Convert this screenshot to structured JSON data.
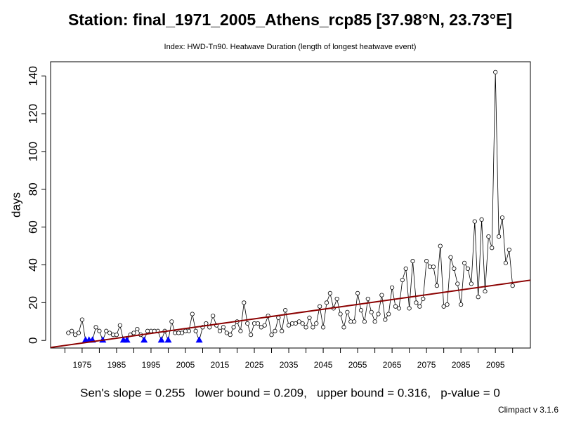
{
  "chart_data": {
    "type": "line",
    "title": "Station: final_1971_2005_Athens_rcp85 [37.98°N, 23.73°E]",
    "subtitle": "Index: HWD-Tn90. Heatwave Duration (length of longest heatwave event)",
    "y_label": "days",
    "annotation": "Sen's slope = 0.255   lower bound = 0.209,   upper bound = 0.316,   p-value = 0",
    "credit": "Climpact v 3.1.6",
    "x": [
      1971,
      1972,
      1973,
      1974,
      1975,
      1976,
      1977,
      1978,
      1979,
      1980,
      1981,
      1982,
      1983,
      1984,
      1985,
      1986,
      1987,
      1988,
      1989,
      1990,
      1991,
      1992,
      1993,
      1994,
      1995,
      1996,
      1997,
      1998,
      1999,
      2000,
      2001,
      2002,
      2003,
      2004,
      2005,
      2006,
      2007,
      2008,
      2009,
      2010,
      2011,
      2012,
      2013,
      2014,
      2015,
      2016,
      2017,
      2018,
      2019,
      2020,
      2021,
      2022,
      2023,
      2024,
      2025,
      2026,
      2027,
      2028,
      2029,
      2030,
      2031,
      2032,
      2033,
      2034,
      2035,
      2036,
      2037,
      2038,
      2039,
      2040,
      2041,
      2042,
      2043,
      2044,
      2045,
      2046,
      2047,
      2048,
      2049,
      2050,
      2051,
      2052,
      2053,
      2054,
      2055,
      2056,
      2057,
      2058,
      2059,
      2060,
      2061,
      2062,
      2063,
      2064,
      2065,
      2066,
      2067,
      2068,
      2069,
      2070,
      2071,
      2072,
      2073,
      2074,
      2075,
      2076,
      2077,
      2078,
      2079,
      2080,
      2081,
      2082,
      2083,
      2084,
      2085,
      2086,
      2087,
      2088,
      2089,
      2090,
      2091,
      2092,
      2093,
      2094,
      2095,
      2096,
      2097,
      2098,
      2099,
      2100
    ],
    "series": [
      {
        "color": "#000000",
        "zero_color": "#0000ff",
        "values": [
          4,
          5,
          3,
          4,
          11,
          0,
          0,
          0,
          7,
          5,
          0,
          5,
          4,
          3,
          3,
          8,
          0,
          0,
          3,
          4,
          6,
          3,
          0,
          5,
          5,
          5,
          5,
          0,
          5,
          0,
          10,
          4,
          4,
          4,
          5,
          5,
          14,
          5,
          0,
          7,
          9,
          7,
          13,
          8,
          5,
          7,
          4,
          3,
          7,
          10,
          5,
          20,
          9,
          3,
          9,
          9,
          7,
          8,
          13,
          3,
          5,
          12,
          5,
          16,
          8,
          9,
          9,
          10,
          9,
          7,
          12,
          7,
          9,
          18,
          7,
          20,
          25,
          17,
          22,
          14,
          7,
          15,
          10,
          10,
          25,
          16,
          10,
          22,
          15,
          10,
          14,
          24,
          11,
          14,
          28,
          18,
          17,
          32,
          38,
          17,
          42,
          20,
          18,
          22,
          42,
          39,
          39,
          29,
          50,
          18,
          19,
          44,
          38,
          30,
          19,
          41,
          38,
          30,
          63,
          23,
          64,
          26,
          55,
          49,
          142,
          55,
          65,
          41,
          48,
          29
        ]
      }
    ],
    "trend_line": {
      "color": "#8b0000",
      "x": [
        1965.84,
        2105.16
      ],
      "y": [
        -3.7,
        31.9
      ]
    },
    "xlim": [
      1965.84,
      2105.16
    ],
    "ylim": [
      -4,
      147.5
    ],
    "xticks": [
      1975,
      1985,
      1995,
      2005,
      2015,
      2025,
      2035,
      2045,
      2055,
      2065,
      2075,
      2085,
      2095
    ],
    "xminor_ticks": [
      1970,
      1980,
      1990,
      2000,
      2010,
      2020,
      2030,
      2040,
      2050,
      2060,
      2070,
      2080,
      2090,
      2100
    ],
    "yticks": [
      0,
      20,
      40,
      60,
      80,
      100,
      120,
      140
    ]
  }
}
